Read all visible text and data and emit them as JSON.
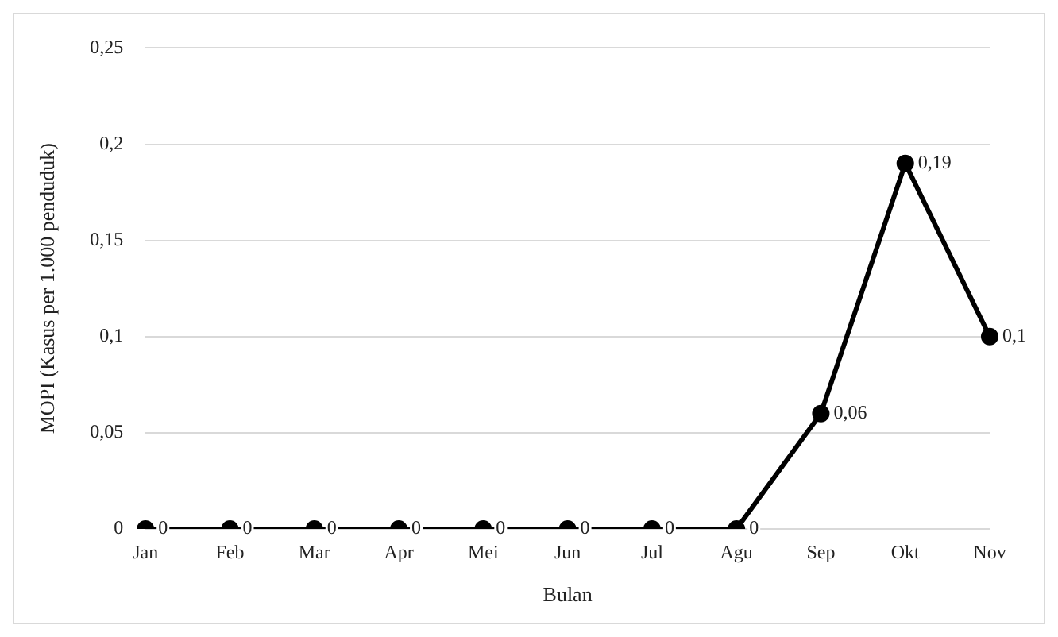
{
  "chart_data": {
    "type": "line",
    "xlabel": "Bulan",
    "ylabel": "MOPI (Kasus per 1.000 penduduk)",
    "categories": [
      "Jan",
      "Feb",
      "Mar",
      "Apr",
      "Mei",
      "Jun",
      "Jul",
      "Agu",
      "Sep",
      "Okt",
      "Nov"
    ],
    "series": [
      {
        "color": "#000000",
        "values": [
          0,
          0,
          0,
          0,
          0,
          0,
          0,
          0,
          0.06,
          0.19,
          0.1
        ],
        "value_labels": [
          "0",
          "0",
          "0",
          "0",
          "0",
          "0",
          "0",
          "0",
          "0,06",
          "0,19",
          "0,1"
        ]
      }
    ],
    "ylim": [
      0,
      0.25
    ],
    "yticks": [
      0,
      {
        "value": 0.05,
        "label": "0,05"
      },
      {
        "value": 0.1,
        "label": "0,1"
      },
      {
        "value": 0.15,
        "label": "0,15"
      },
      {
        "value": 0.2,
        "label": "0,2"
      },
      {
        "value": 0.25,
        "label": "0,25"
      }
    ],
    "grid": "y",
    "legend": false,
    "marker": "circle",
    "line_style": "solid"
  }
}
